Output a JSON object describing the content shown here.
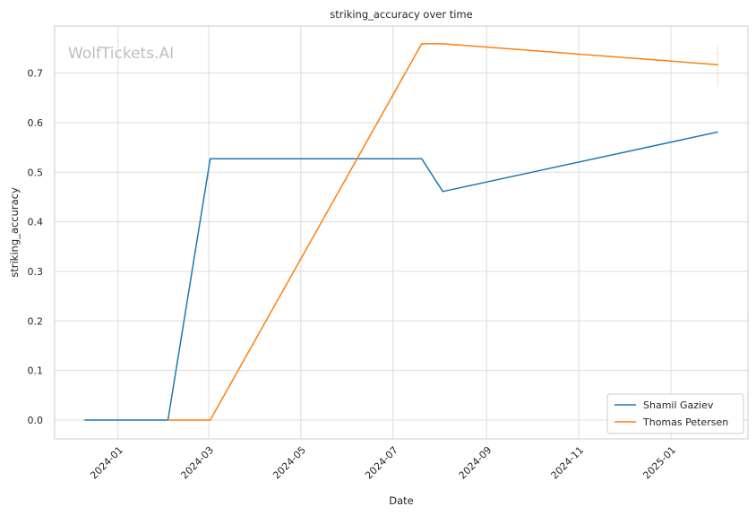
{
  "watermark": "WolfTickets.AI",
  "chart_data": {
    "type": "line",
    "title": "striking_accuracy over time",
    "xlabel": "Date",
    "ylabel": "striking_accuracy",
    "x_ticks": [
      "2024-01",
      "2024-03",
      "2024-05",
      "2024-07",
      "2024-09",
      "2024-11",
      "2025-01"
    ],
    "y_ticks": [
      "0.0",
      "0.1",
      "0.2",
      "0.3",
      "0.4",
      "0.5",
      "0.6",
      "0.7"
    ],
    "ylim": [
      -0.038,
      0.795
    ],
    "xlim": [
      "2023-11-20",
      "2025-02-21"
    ],
    "grid": true,
    "legend_position": "bottom-right",
    "series": [
      {
        "name": "Shamil Gaziev",
        "color": "#1f77b4",
        "points": [
          {
            "x": "2023-12-10",
            "y": 0.0
          },
          {
            "x": "2024-02-03",
            "y": 0.0
          },
          {
            "x": "2024-03-02",
            "y": 0.527
          },
          {
            "x": "2024-07-20",
            "y": 0.527
          },
          {
            "x": "2024-08-03",
            "y": 0.461
          },
          {
            "x": "2025-02-01",
            "y": 0.581
          }
        ]
      },
      {
        "name": "Thomas Petersen",
        "color": "#ff7f0e",
        "points": [
          {
            "x": "2024-02-03",
            "y": 0.0
          },
          {
            "x": "2024-03-02",
            "y": 0.0
          },
          {
            "x": "2024-07-20",
            "y": 0.759
          },
          {
            "x": "2024-08-03",
            "y": 0.759
          },
          {
            "x": "2025-02-01",
            "y": 0.717
          }
        ]
      }
    ]
  }
}
